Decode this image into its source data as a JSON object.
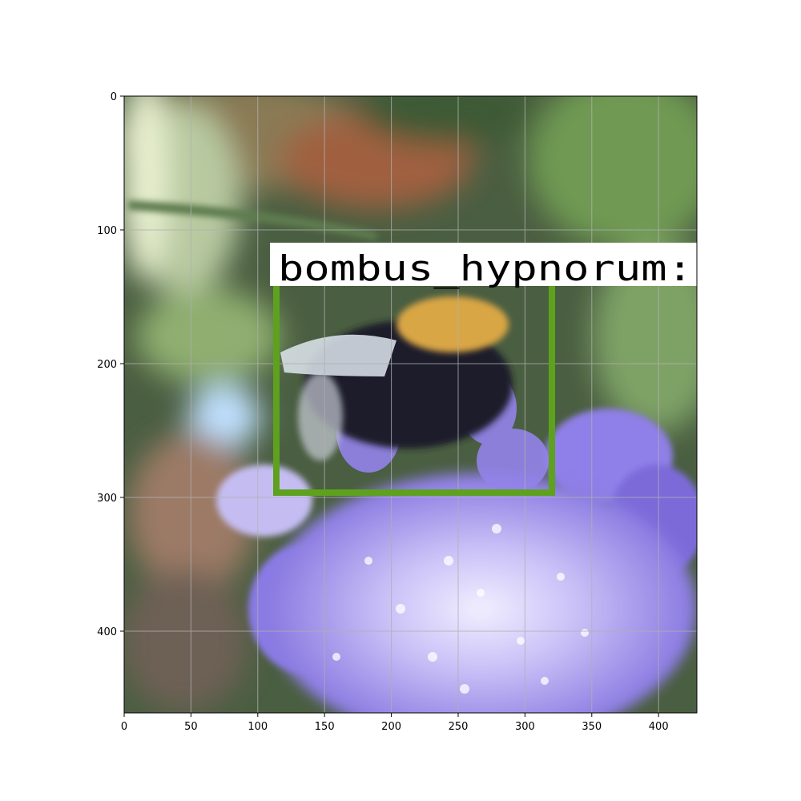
{
  "figure": {
    "x_ticks": [
      "0",
      "50",
      "100",
      "150",
      "200",
      "250",
      "300",
      "350",
      "400"
    ],
    "y_ticks": [
      "0",
      "100",
      "200",
      "300",
      "400"
    ],
    "grid": true
  },
  "detection": {
    "label": "bombus_hypnorum:",
    "box_color": "#5ea11e",
    "label_bg": "#ffffff"
  },
  "scene": {
    "subject": "bumblebee-on-flower",
    "flower_color": "#8a7ae6",
    "background_color": "#4f6a45"
  }
}
